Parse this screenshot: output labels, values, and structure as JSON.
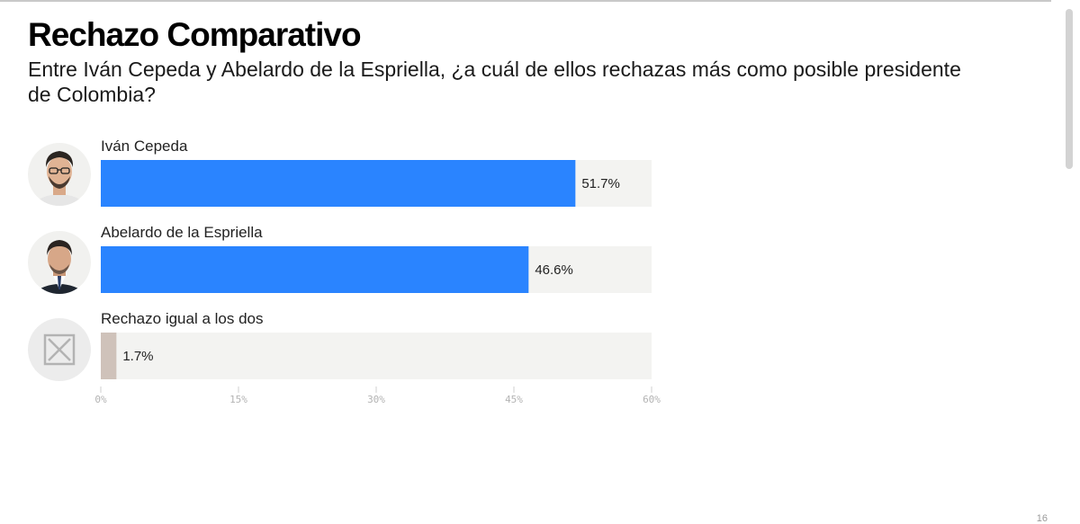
{
  "chart_data": {
    "type": "bar",
    "orientation": "horizontal",
    "title": "Rechazo Comparativo",
    "subtitle": "Entre Iván Cepeda y Abelardo de la Espriella, ¿a cuál de ellos rechazas más como posible presidente de Colombia?",
    "categories": [
      "Iván Cepeda",
      "Abelardo de la Espriella",
      "Rechazo igual a los dos"
    ],
    "values": [
      51.7,
      46.6,
      1.7
    ],
    "value_labels": [
      "51.7%",
      "46.6%",
      "1.7%"
    ],
    "category_icons": [
      "person-photo-icon",
      "person-photo-icon",
      "x-box-icon"
    ],
    "xlim": [
      0,
      60
    ],
    "ticks": [
      0,
      15,
      30,
      45,
      60
    ],
    "tick_labels": [
      "0%",
      "15%",
      "30%",
      "45%",
      "60%"
    ],
    "grid": false,
    "colors": {
      "bar": "#2a84ff",
      "bar_neutral": "#cfc2ba",
      "track": "#f3f3f1"
    }
  },
  "page": {
    "page_number": "16"
  }
}
